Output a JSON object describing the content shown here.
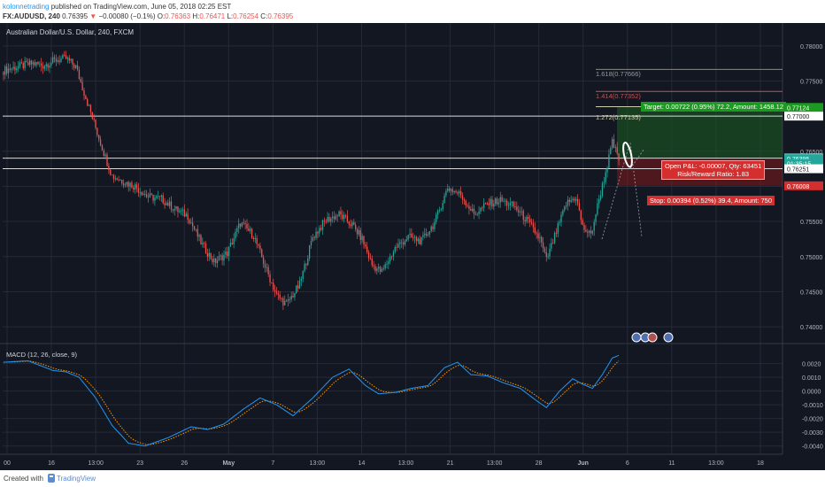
{
  "header": {
    "user": "kolonnetrading",
    "published": " published on TradingView.com, June 05, 2018 02:25 EST",
    "symbol": "FX:AUDUSD, 240 ",
    "last": "0.76395",
    "change": "−0.00080 (−0.1%)",
    "o_label": "O:",
    "o": "0.76363",
    "h_label": " H:",
    "h": "0.76471",
    "l_label": " L:",
    "l": "0.76254",
    "c_label": " C:",
    "c": "0.76395"
  },
  "instrument_title": "Australian Dollar/U.S. Dollar, 240, FXCM",
  "macd_label": "MACD (12, 26, close, 9)",
  "trade": {
    "target": "Target: 0.00722 (0.95%) 72.2, Amount: 1458.12",
    "stop": "Stop: 0.00394 (0.52%) 39.4, Amount: 750",
    "pnl_line1": "Open P&L: -0.00007, Qty: 63451",
    "pnl_line2": "Risk/Reward Ratio: 1.83"
  },
  "fib": {
    "f1272": "1.272(0.77135)",
    "f1414": "1.414(0.77352)",
    "f1618": "1.618(0.77666)"
  },
  "footer": {
    "created": "Created with",
    "brand": "TradingView"
  },
  "colors": {
    "up": "#26a69a",
    "down": "#ef5350",
    "bg": "#131722",
    "grid": "#252a38",
    "macd": "#2196f3",
    "signal": "#ff9800"
  },
  "chart_data": {
    "type": "candlestick",
    "price_axis": {
      "range": [
        0.7385,
        0.7825
      ],
      "ticks": [
        "0.78000",
        "0.77500",
        "0.77000",
        "0.76500",
        "0.76000",
        "0.75500",
        "0.75000",
        "0.74500",
        "0.74000"
      ],
      "markers": [
        {
          "label": "0.77124",
          "value": 0.77124,
          "color": "#1b9a1f"
        },
        {
          "label": "0.77000",
          "value": 0.77,
          "color": "#ffffff"
        },
        {
          "label": "0.76402",
          "value": 0.76402,
          "color": "#ffffff"
        },
        {
          "label": "0.76395",
          "value": 0.76395,
          "color": "#26a69a"
        },
        {
          "label": "01:35:15",
          "value": 0.76325,
          "color": "#26a69a"
        },
        {
          "label": "0.76251",
          "value": 0.76251,
          "color": "#ffffff"
        },
        {
          "label": "0.76008",
          "value": 0.76008,
          "color": "#d32f2f"
        }
      ],
      "hlines": [
        0.77,
        0.76402,
        0.76251
      ]
    },
    "macd_axis": {
      "range": [
        -0.0046,
        0.0032
      ],
      "ticks": [
        "0.0020",
        "0.0010",
        "0.0000",
        "-0.0010",
        "-0.0020",
        "-0.0030",
        "-0.0040"
      ]
    },
    "time_axis": [
      "00",
      "16",
      "13:00",
      "23",
      "26",
      "May",
      "7",
      "13:00",
      "14",
      "13:00",
      "21",
      "13:00",
      "28",
      "Jun",
      "6",
      "11",
      "13:00",
      "18"
    ],
    "close_anchors": [
      [
        0,
        0.7765
      ],
      [
        8,
        0.777
      ],
      [
        18,
        0.7775
      ],
      [
        24,
        0.7772
      ],
      [
        32,
        0.778
      ],
      [
        38,
        0.7782
      ],
      [
        44,
        0.777
      ],
      [
        52,
        0.7712
      ],
      [
        60,
        0.7655
      ],
      [
        66,
        0.7615
      ],
      [
        72,
        0.7608
      ],
      [
        80,
        0.76
      ],
      [
        88,
        0.7585
      ],
      [
        96,
        0.7582
      ],
      [
        104,
        0.7568
      ],
      [
        112,
        0.7558
      ],
      [
        120,
        0.752
      ],
      [
        128,
        0.7492
      ],
      [
        136,
        0.7505
      ],
      [
        144,
        0.7548
      ],
      [
        152,
        0.753
      ],
      [
        160,
        0.748
      ],
      [
        166,
        0.7445
      ],
      [
        172,
        0.7432
      ],
      [
        180,
        0.746
      ],
      [
        188,
        0.7528
      ],
      [
        196,
        0.7552
      ],
      [
        204,
        0.756
      ],
      [
        212,
        0.7545
      ],
      [
        218,
        0.7525
      ],
      [
        224,
        0.7488
      ],
      [
        230,
        0.7478
      ],
      [
        238,
        0.7512
      ],
      [
        246,
        0.7528
      ],
      [
        254,
        0.7522
      ],
      [
        262,
        0.7548
      ],
      [
        270,
        0.7598
      ],
      [
        278,
        0.7588
      ],
      [
        286,
        0.756
      ],
      [
        294,
        0.7575
      ],
      [
        302,
        0.758
      ],
      [
        310,
        0.7572
      ],
      [
        318,
        0.7552
      ],
      [
        326,
        0.7525
      ],
      [
        330,
        0.7495
      ],
      [
        336,
        0.7535
      ],
      [
        342,
        0.7575
      ],
      [
        348,
        0.7585
      ],
      [
        352,
        0.7542
      ],
      [
        357,
        0.753
      ],
      [
        362,
        0.7582
      ],
      [
        366,
        0.762
      ],
      [
        370,
        0.7662
      ],
      [
        374,
        0.764
      ]
    ],
    "macd_anchors": [
      [
        0,
        0.0021
      ],
      [
        15,
        0.0022
      ],
      [
        30,
        0.0015
      ],
      [
        38,
        0.0014
      ],
      [
        46,
        0.001
      ],
      [
        56,
        -0.0005
      ],
      [
        66,
        -0.0025
      ],
      [
        76,
        -0.0038
      ],
      [
        86,
        -0.004
      ],
      [
        100,
        -0.0034
      ],
      [
        114,
        -0.0026
      ],
      [
        124,
        -0.0028
      ],
      [
        134,
        -0.0024
      ],
      [
        146,
        -0.0013
      ],
      [
        156,
        -0.0005
      ],
      [
        166,
        -0.001
      ],
      [
        176,
        -0.0018
      ],
      [
        188,
        -0.0005
      ],
      [
        200,
        0.001
      ],
      [
        210,
        0.0016
      ],
      [
        220,
        0.0004
      ],
      [
        228,
        -0.0002
      ],
      [
        238,
        -0.0001
      ],
      [
        248,
        0.0002
      ],
      [
        258,
        0.0004
      ],
      [
        268,
        0.0017
      ],
      [
        276,
        0.0021
      ],
      [
        284,
        0.0012
      ],
      [
        294,
        0.0011
      ],
      [
        304,
        0.0006
      ],
      [
        314,
        0.0002
      ],
      [
        324,
        -0.0007
      ],
      [
        330,
        -0.0012
      ],
      [
        338,
        0.0
      ],
      [
        346,
        0.0009
      ],
      [
        352,
        0.0005
      ],
      [
        358,
        0.0002
      ],
      [
        364,
        0.0012
      ],
      [
        370,
        0.0024
      ],
      [
        374,
        0.0026
      ]
    ]
  }
}
